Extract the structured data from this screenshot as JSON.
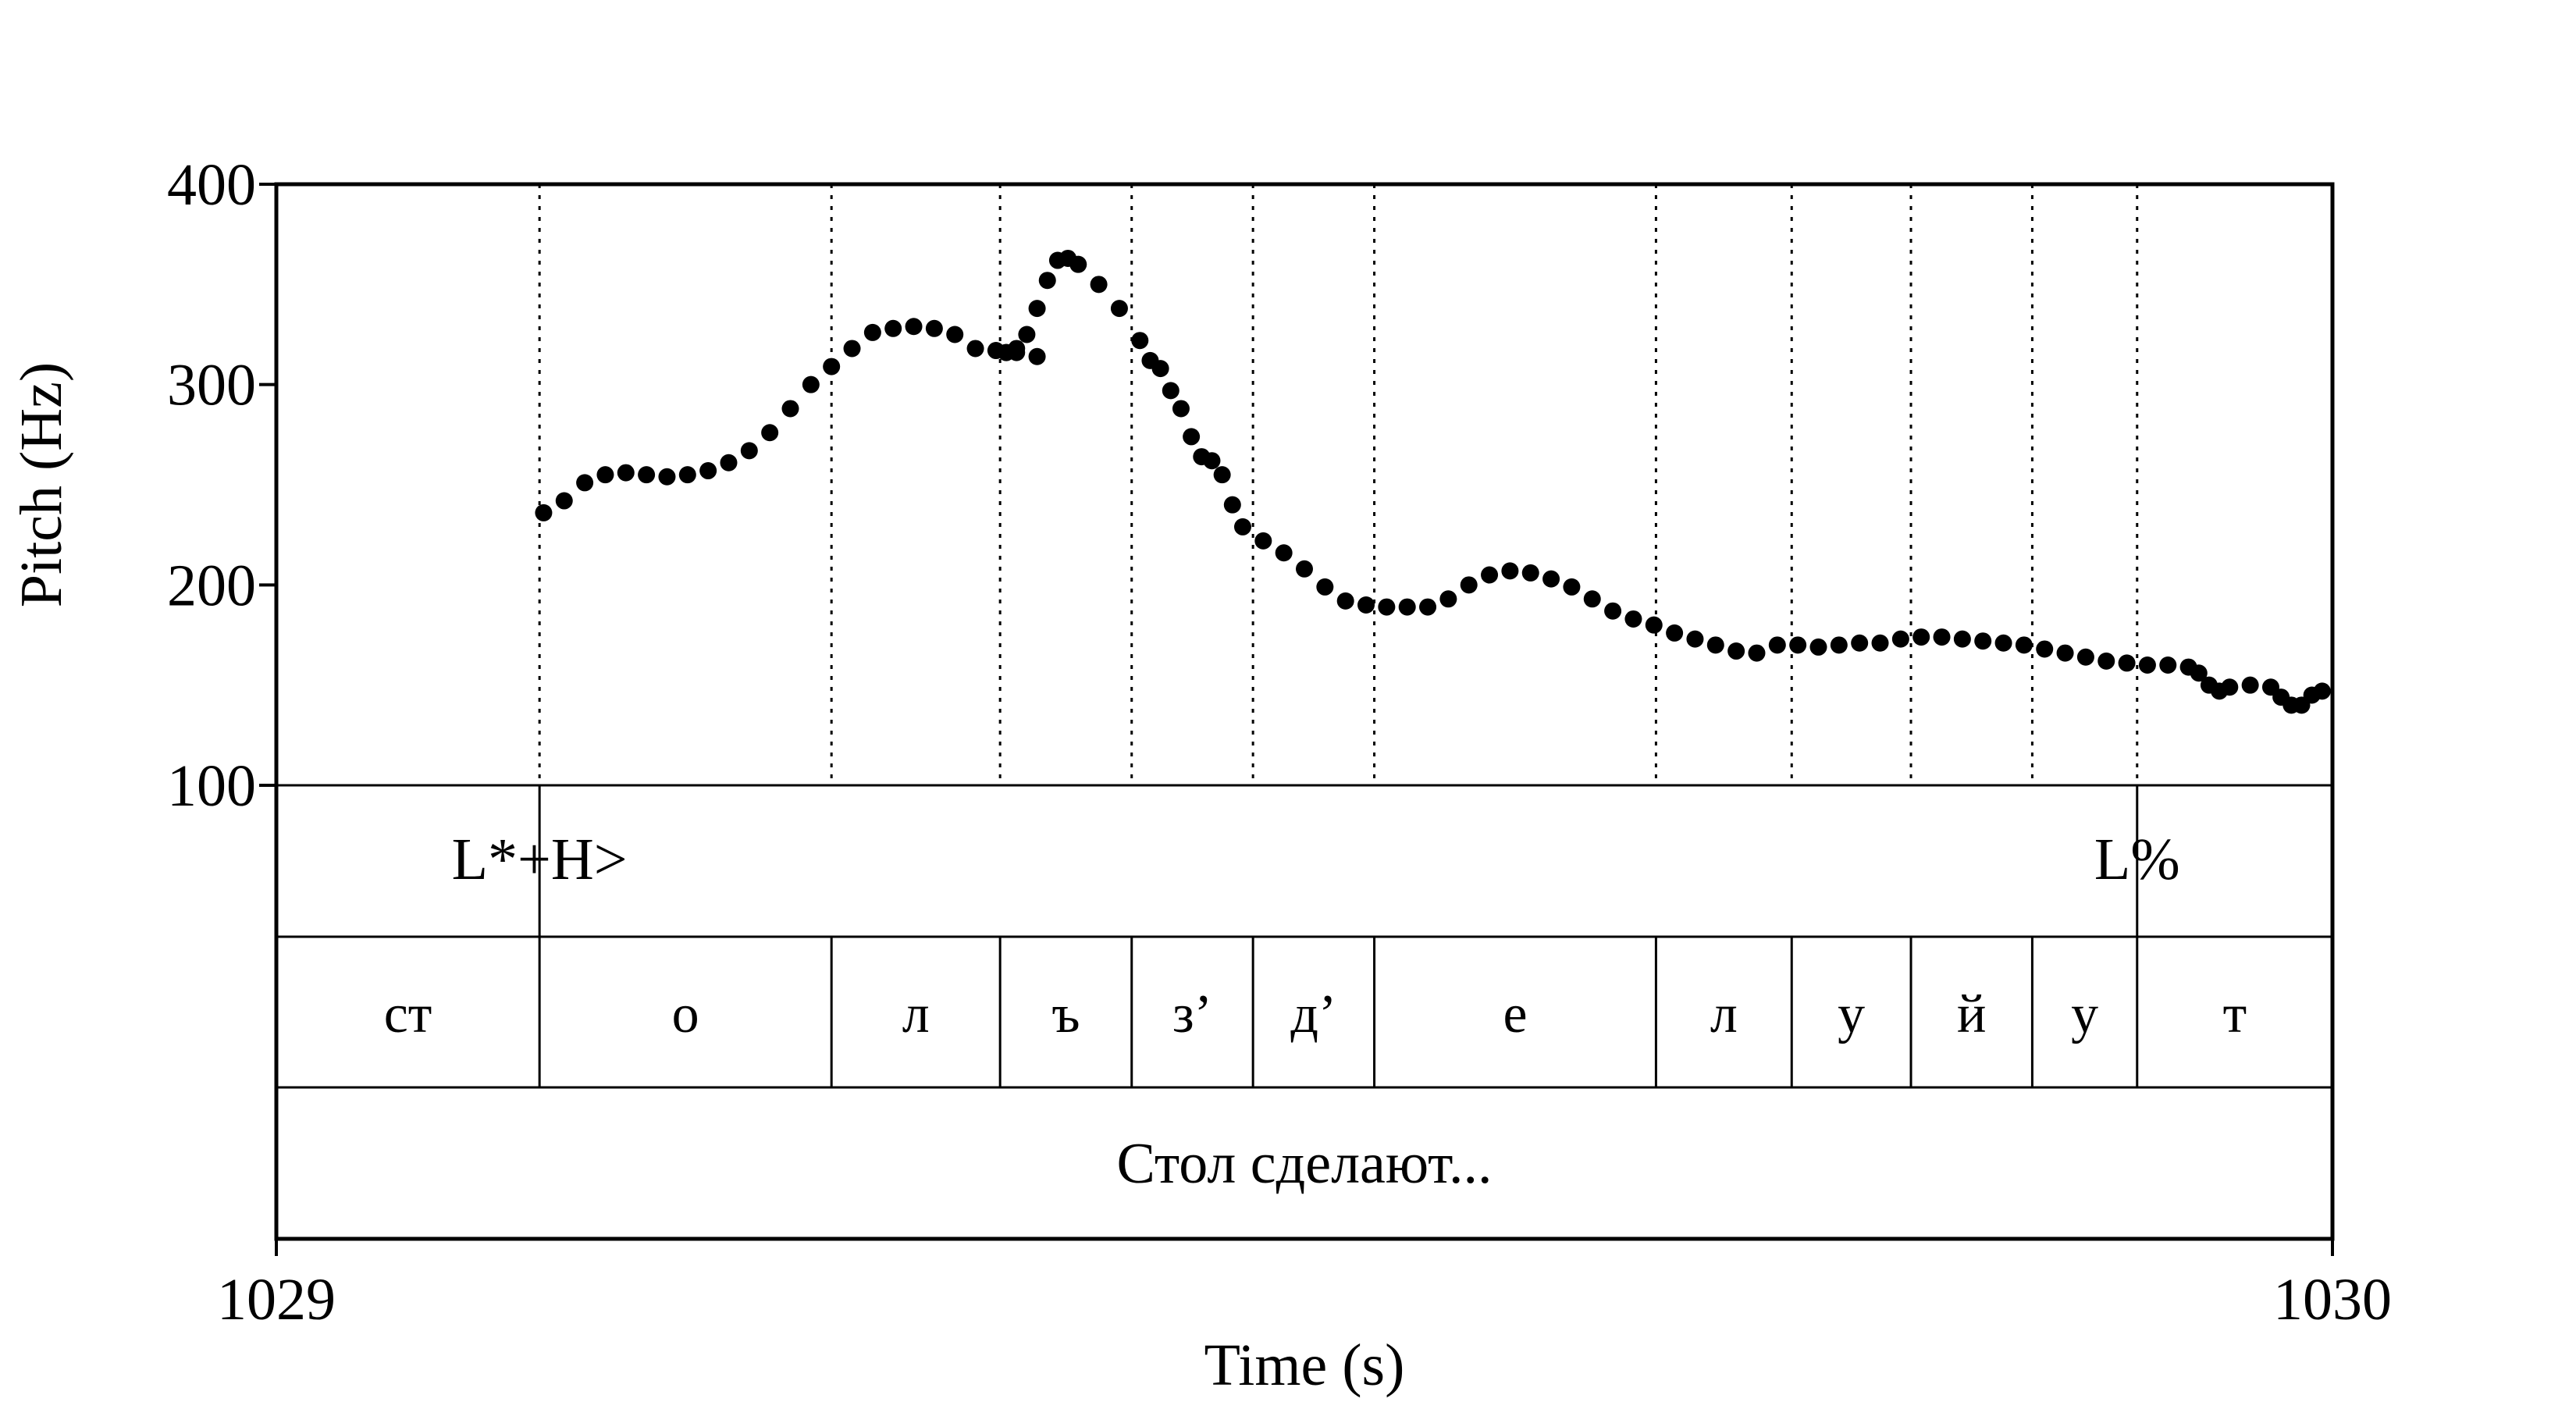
{
  "chart_data": {
    "type": "scatter",
    "x_unit_label": "Time (s)",
    "y_unit_label": "Pitch (Hz)",
    "xlim": [
      1029,
      1030
    ],
    "ylim": [
      100,
      400
    ],
    "x_ticks": [
      "1029",
      "1030"
    ],
    "y_ticks": [
      "400",
      "300",
      "200",
      "100"
    ],
    "grid": "dotted vertical lines at segment boundaries",
    "pitch_points": [
      [
        1029.13,
        236
      ],
      [
        1029.14,
        242
      ],
      [
        1029.15,
        251
      ],
      [
        1029.16,
        255
      ],
      [
        1029.17,
        256
      ],
      [
        1029.18,
        255
      ],
      [
        1029.19,
        254
      ],
      [
        1029.2,
        255
      ],
      [
        1029.21,
        257
      ],
      [
        1029.22,
        261
      ],
      [
        1029.23,
        267
      ],
      [
        1029.24,
        276
      ],
      [
        1029.25,
        288
      ],
      [
        1029.26,
        300
      ],
      [
        1029.27,
        309
      ],
      [
        1029.28,
        318
      ],
      [
        1029.29,
        326
      ],
      [
        1029.3,
        328
      ],
      [
        1029.31,
        329
      ],
      [
        1029.32,
        328
      ],
      [
        1029.33,
        325
      ],
      [
        1029.34,
        318
      ],
      [
        1029.35,
        317
      ],
      [
        1029.36,
        316
      ],
      [
        1029.37,
        314
      ],
      [
        1029.355,
        316
      ],
      [
        1029.355,
        316
      ],
      [
        1029.36,
        318
      ],
      [
        1029.365,
        325
      ],
      [
        1029.37,
        338
      ],
      [
        1029.375,
        352
      ],
      [
        1029.38,
        362
      ],
      [
        1029.385,
        363
      ],
      [
        1029.39,
        360
      ],
      [
        1029.4,
        350
      ],
      [
        1029.41,
        338
      ],
      [
        1029.42,
        322
      ],
      [
        1029.425,
        312
      ],
      [
        1029.43,
        308
      ],
      [
        1029.435,
        297
      ],
      [
        1029.44,
        288
      ],
      [
        1029.445,
        274
      ],
      [
        1029.45,
        264
      ],
      [
        1029.455,
        262
      ],
      [
        1029.46,
        255
      ],
      [
        1029.465,
        240
      ],
      [
        1029.47,
        229
      ],
      [
        1029.48,
        222
      ],
      [
        1029.49,
        216
      ],
      [
        1029.5,
        208
      ],
      [
        1029.51,
        199
      ],
      [
        1029.52,
        192
      ],
      [
        1029.53,
        190
      ],
      [
        1029.54,
        189
      ],
      [
        1029.55,
        189
      ],
      [
        1029.56,
        189
      ],
      [
        1029.57,
        193
      ],
      [
        1029.58,
        200
      ],
      [
        1029.59,
        205
      ],
      [
        1029.6,
        207
      ],
      [
        1029.61,
        206
      ],
      [
        1029.62,
        203
      ],
      [
        1029.63,
        199
      ],
      [
        1029.64,
        193
      ],
      [
        1029.65,
        187
      ],
      [
        1029.66,
        183
      ],
      [
        1029.67,
        180
      ],
      [
        1029.68,
        176
      ],
      [
        1029.69,
        173
      ],
      [
        1029.7,
        170
      ],
      [
        1029.71,
        167
      ],
      [
        1029.72,
        166
      ],
      [
        1029.73,
        170
      ],
      [
        1029.74,
        170
      ],
      [
        1029.75,
        169
      ],
      [
        1029.76,
        170
      ],
      [
        1029.77,
        171
      ],
      [
        1029.78,
        171
      ],
      [
        1029.79,
        173
      ],
      [
        1029.8,
        174
      ],
      [
        1029.81,
        174
      ],
      [
        1029.82,
        173
      ],
      [
        1029.83,
        172
      ],
      [
        1029.84,
        171
      ],
      [
        1029.85,
        170
      ],
      [
        1029.86,
        168
      ],
      [
        1029.87,
        166
      ],
      [
        1029.88,
        164
      ],
      [
        1029.89,
        162
      ],
      [
        1029.9,
        161
      ],
      [
        1029.91,
        160
      ],
      [
        1029.92,
        160
      ],
      [
        1029.93,
        159
      ],
      [
        1029.935,
        156
      ],
      [
        1029.94,
        150
      ],
      [
        1029.945,
        147
      ],
      [
        1029.95,
        149
      ],
      [
        1029.96,
        150
      ],
      [
        1029.97,
        149
      ],
      [
        1029.975,
        144
      ],
      [
        1029.98,
        140
      ],
      [
        1029.985,
        140
      ],
      [
        1029.99,
        145
      ],
      [
        1029.995,
        147
      ]
    ],
    "tone_tier": [
      {
        "t": 1029.128,
        "label": "L*+H>"
      },
      {
        "t": 1029.905,
        "label": "L%"
      }
    ],
    "segment_boundaries": [
      1029.128,
      1029.27,
      1029.352,
      1029.416,
      1029.475,
      1029.534,
      1029.671,
      1029.737,
      1029.795,
      1029.854,
      1029.905
    ],
    "segments": [
      {
        "start": 1029.0,
        "end": 1029.128,
        "label": "ст"
      },
      {
        "start": 1029.128,
        "end": 1029.27,
        "label": "о"
      },
      {
        "start": 1029.27,
        "end": 1029.352,
        "label": "л"
      },
      {
        "start": 1029.352,
        "end": 1029.416,
        "label": "ъ"
      },
      {
        "start": 1029.416,
        "end": 1029.475,
        "label": "з’"
      },
      {
        "start": 1029.475,
        "end": 1029.534,
        "label": "д’"
      },
      {
        "start": 1029.534,
        "end": 1029.671,
        "label": "е"
      },
      {
        "start": 1029.671,
        "end": 1029.737,
        "label": "л"
      },
      {
        "start": 1029.737,
        "end": 1029.795,
        "label": "у"
      },
      {
        "start": 1029.795,
        "end": 1029.854,
        "label": "й"
      },
      {
        "start": 1029.854,
        "end": 1029.905,
        "label": "у"
      },
      {
        "start": 1029.905,
        "end": 1030.0,
        "label": "т"
      }
    ],
    "phrase_label": "Стол сделают..."
  }
}
